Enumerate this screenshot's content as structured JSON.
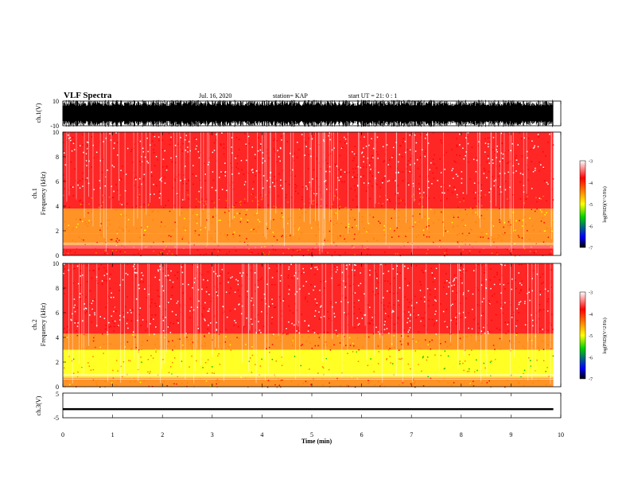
{
  "header": {
    "title": "VLF Spectra",
    "date": "Jul. 16, 2020",
    "station": "station= KAP",
    "start": "start UT =  21: 0 : 1"
  },
  "chart_data": [
    {
      "type": "line",
      "name": "ch1-waveform",
      "ylabel": "ch.1(V)",
      "ylim": [
        -10,
        10
      ],
      "yticks": [
        "10",
        "-10"
      ],
      "xlim": [
        0,
        10
      ],
      "note_values": "dense oscillating waveform saturating near +/-10 V throughout 0-9.85 min"
    },
    {
      "type": "heatmap",
      "name": "ch1-spectrogram",
      "ylabel": "ch.1 Frequency (kHz)",
      "ylim": [
        0,
        10
      ],
      "yticks": [
        "0",
        "2",
        "4",
        "6",
        "8",
        "10"
      ],
      "xlim": [
        0,
        10
      ],
      "colorbar": {
        "label": "log(PSD)(V^2/Hz)",
        "ticks": [
          "-3",
          "-4",
          "-5",
          "-6",
          "-7"
        ],
        "range": [
          -7,
          -3
        ]
      },
      "bands": [
        {
          "f_low": 0,
          "f_high": 0.8,
          "level": -4.0
        },
        {
          "f_low": 0.8,
          "f_high": 1.8,
          "level": -4.1
        },
        {
          "f_low": 1.8,
          "f_high": 3.8,
          "level": -4.4
        },
        {
          "f_low": 3.8,
          "f_high": 5.0,
          "level": -3.9
        },
        {
          "f_low": 5.0,
          "f_high": 10,
          "level": -3.4
        }
      ],
      "data_end_min": 9.85
    },
    {
      "type": "heatmap",
      "name": "ch2-spectrogram",
      "ylabel": "ch.2 Frequency (kHz)",
      "ylim": [
        0,
        10
      ],
      "yticks": [
        "0",
        "2",
        "4",
        "6",
        "8",
        "10"
      ],
      "xlim": [
        0,
        10
      ],
      "colorbar": {
        "label": "log(PSD)(V^2/Hz)",
        "ticks": [
          "-3",
          "-4",
          "-5",
          "-6",
          "-7"
        ],
        "range": [
          -7,
          -3
        ]
      },
      "bands": [
        {
          "f_low": 0,
          "f_high": 0.8,
          "level": -4.2
        },
        {
          "f_low": 0.8,
          "f_high": 3.0,
          "level": -4.9
        },
        {
          "f_low": 3.0,
          "f_high": 4.3,
          "level": -4.2
        },
        {
          "f_low": 4.3,
          "f_high": 10,
          "level": -3.4
        }
      ],
      "data_end_min": 9.85
    },
    {
      "type": "line",
      "name": "ch3-waveform",
      "ylabel": "ch.3(V)",
      "ylim": [
        -5,
        5
      ],
      "yticks": [
        "5",
        "-5"
      ],
      "xlim": [
        0,
        10
      ],
      "baseline": -1.5,
      "amplitude": 0.4
    }
  ],
  "xaxis": {
    "label": "Time (min)",
    "ticks": [
      "0",
      "1",
      "2",
      "3",
      "4",
      "5",
      "6",
      "7",
      "8",
      "9",
      "10"
    ]
  },
  "colors": {
    "colormap": [
      "#000000",
      "#0000ff",
      "#00c000",
      "#ffff00",
      "#ff8000",
      "#ff0000",
      "#ffffff"
    ],
    "waveform": "#000000"
  }
}
